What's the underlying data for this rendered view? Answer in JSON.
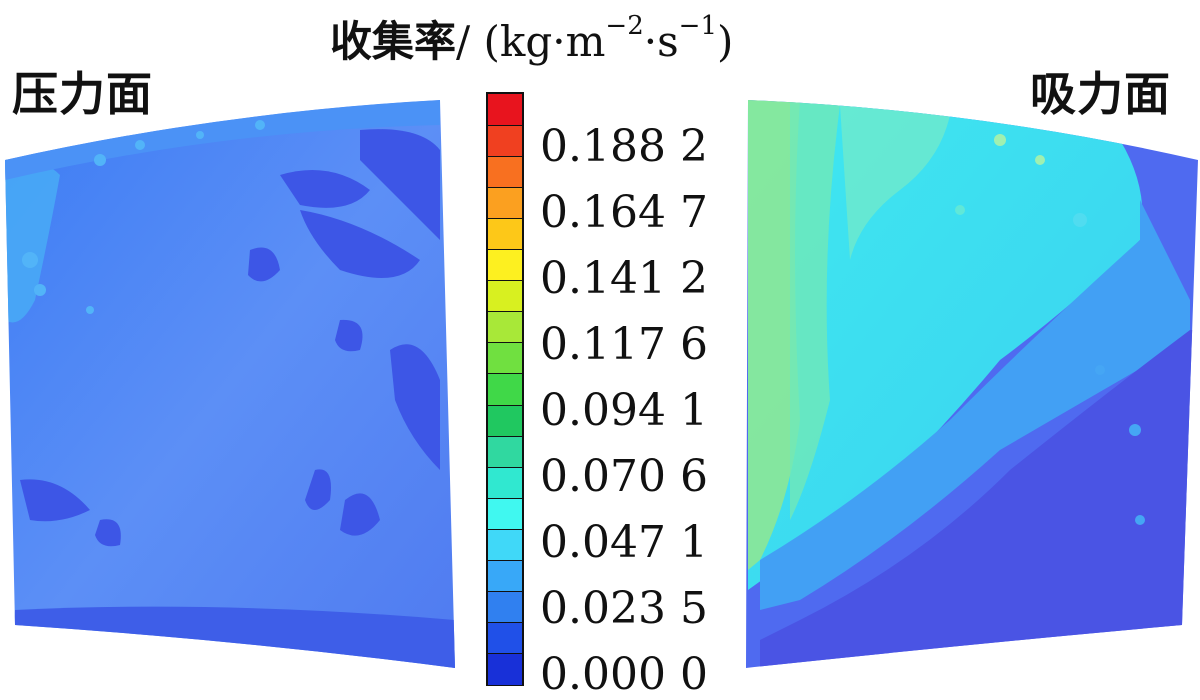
{
  "labels": {
    "pressure_side": "压力面",
    "suction_side": "吸力面"
  },
  "colorbar": {
    "title_cjk": "收集率",
    "title_unit": "/ (kg·m",
    "title_exp1": "−2",
    "title_mid": "·s",
    "title_exp2": "−1",
    "title_close": ")",
    "tick_labels": [
      "0.188 2",
      "0.164 7",
      "0.141 2",
      "0.117 6",
      "0.094 1",
      "0.070 6",
      "0.047 1",
      "0.023 5",
      "0.000 0"
    ],
    "colors_top_to_bottom": [
      "#e8141e",
      "#f04020",
      "#f87020",
      "#fba020",
      "#fdc818",
      "#fdf020",
      "#d8f020",
      "#a8e838",
      "#70e040",
      "#40d848",
      "#20c860",
      "#30d8a0",
      "#30e8d0",
      "#40f8f0",
      "#40d8f8",
      "#38a8f8",
      "#3080f0",
      "#2050e8",
      "#1830d8"
    ]
  }
}
